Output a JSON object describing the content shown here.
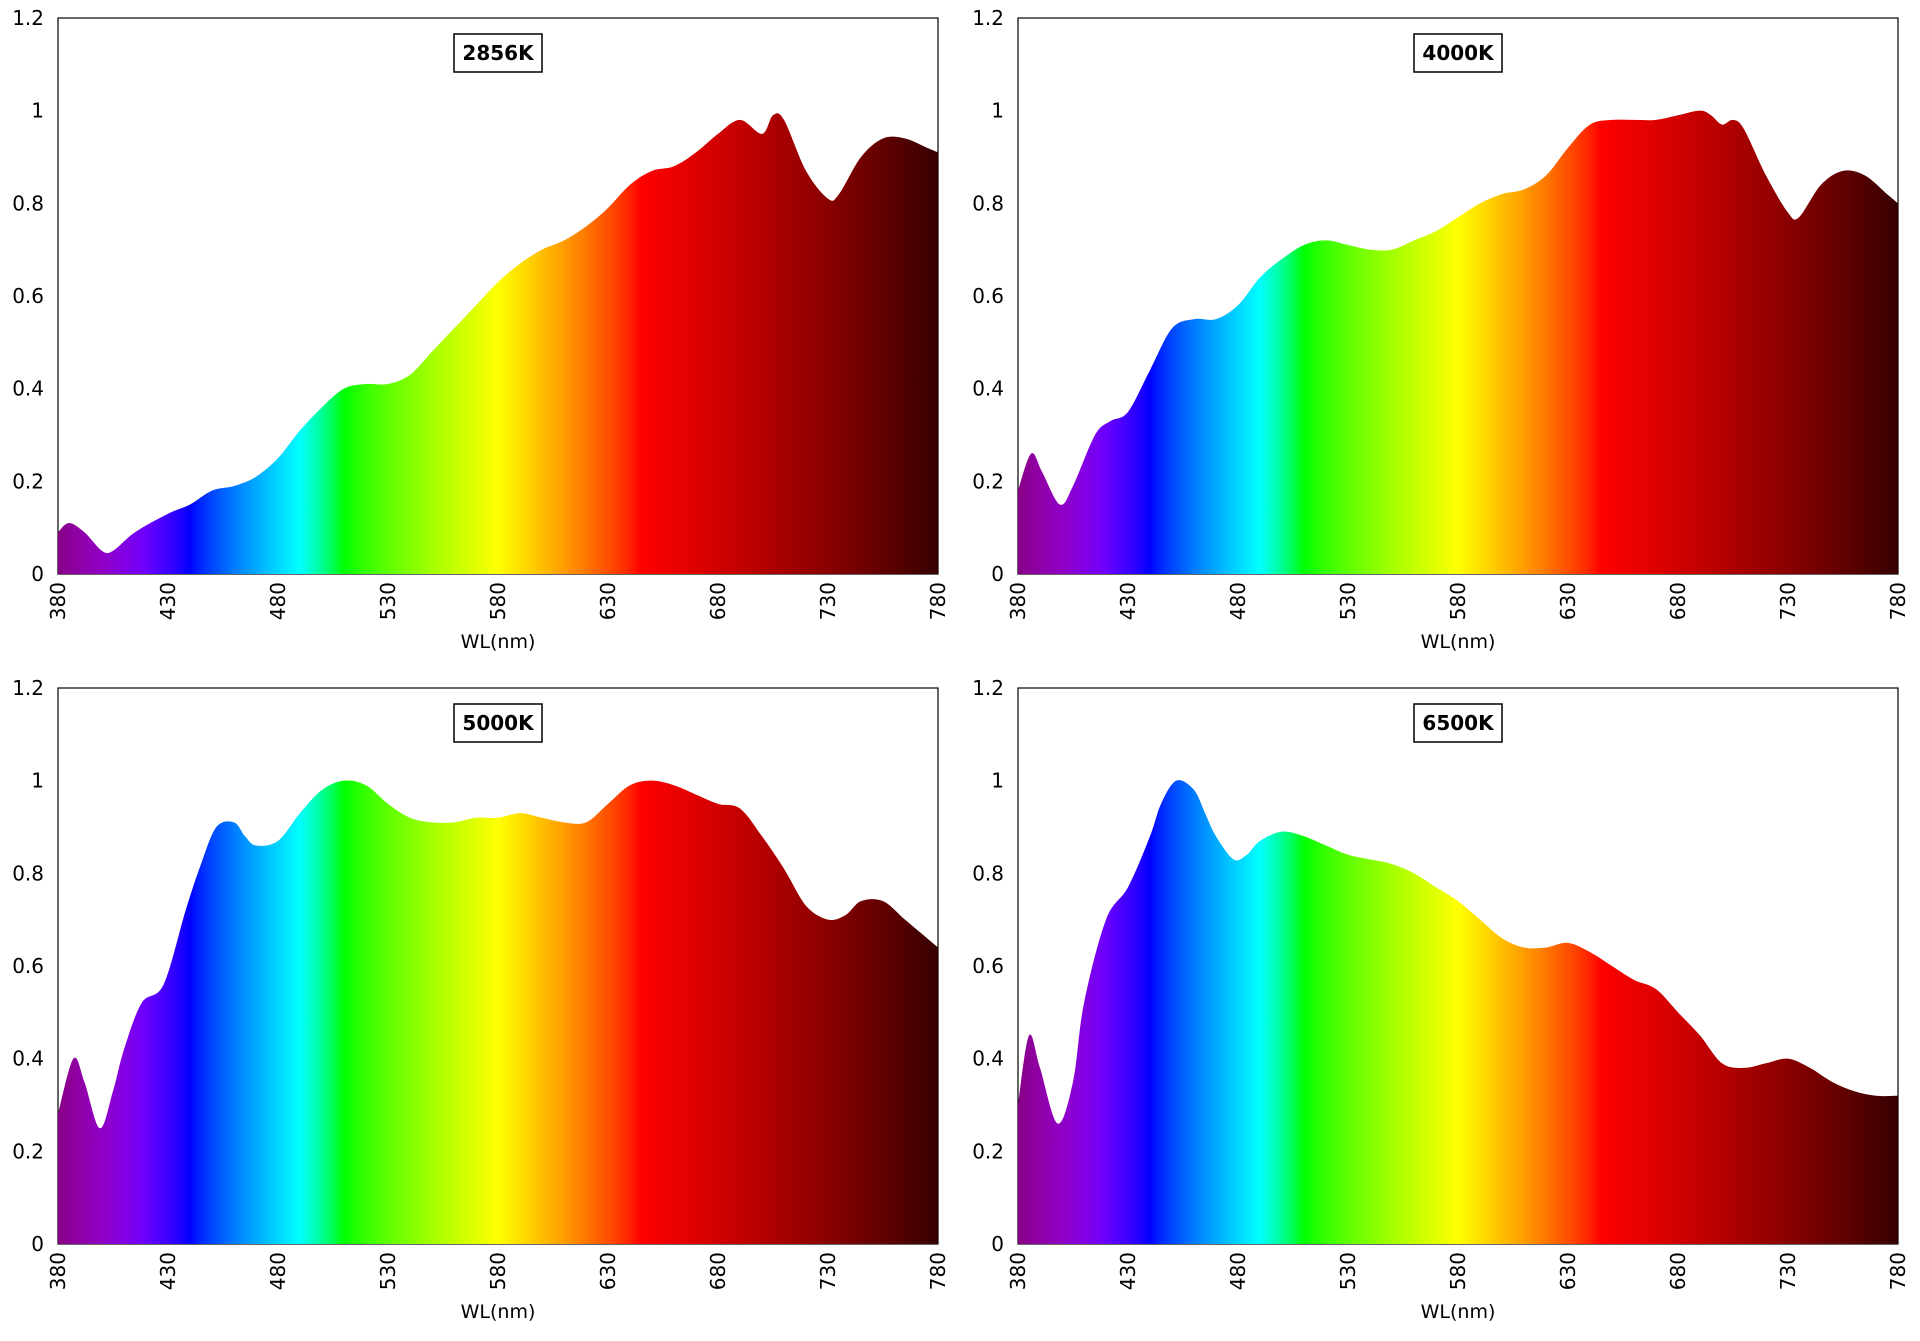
{
  "chart_data": [
    {
      "type": "area",
      "title": "2856K",
      "xlabel": "WL(nm)",
      "ylabel": "",
      "xlim": [
        380,
        780
      ],
      "ylim": [
        0,
        1.2
      ],
      "xticks": [
        "380",
        "430",
        "480",
        "530",
        "580",
        "630",
        "680",
        "730",
        "780"
      ],
      "yticks": [
        "0",
        "0.2",
        "0.4",
        "0.6",
        "0.8",
        "1",
        "1.2"
      ],
      "grid": false,
      "legend": "none",
      "fill": "visible-spectrum gradient",
      "x": [
        380,
        385,
        392,
        400,
        405,
        415,
        430,
        440,
        450,
        460,
        470,
        480,
        490,
        500,
        510,
        520,
        530,
        540,
        550,
        560,
        570,
        580,
        590,
        600,
        610,
        620,
        630,
        640,
        650,
        660,
        670,
        680,
        690,
        700,
        705,
        710,
        720,
        730,
        735,
        745,
        755,
        765,
        775,
        780
      ],
      "values": [
        0.09,
        0.11,
        0.09,
        0.05,
        0.05,
        0.09,
        0.13,
        0.15,
        0.18,
        0.19,
        0.21,
        0.25,
        0.31,
        0.36,
        0.4,
        0.41,
        0.41,
        0.43,
        0.48,
        0.53,
        0.58,
        0.63,
        0.67,
        0.7,
        0.72,
        0.75,
        0.79,
        0.84,
        0.87,
        0.88,
        0.91,
        0.95,
        0.98,
        0.95,
        0.99,
        0.98,
        0.87,
        0.81,
        0.82,
        0.9,
        0.94,
        0.94,
        0.92,
        0.91
      ]
    },
    {
      "type": "area",
      "title": "4000K",
      "xlabel": "WL(nm)",
      "ylabel": "",
      "xlim": [
        380,
        780
      ],
      "ylim": [
        0,
        1.2
      ],
      "xticks": [
        "380",
        "430",
        "480",
        "530",
        "580",
        "630",
        "680",
        "730",
        "780"
      ],
      "yticks": [
        "0",
        "0.2",
        "0.4",
        "0.6",
        "0.8",
        "1",
        "1.2"
      ],
      "grid": false,
      "legend": "none",
      "fill": "visible-spectrum gradient",
      "x": [
        380,
        386,
        391,
        399,
        405,
        415,
        422,
        430,
        440,
        450,
        460,
        470,
        480,
        490,
        500,
        510,
        520,
        530,
        540,
        550,
        560,
        570,
        580,
        590,
        600,
        610,
        620,
        630,
        640,
        650,
        660,
        670,
        680,
        690,
        695,
        700,
        705,
        710,
        720,
        730,
        735,
        745,
        755,
        765,
        775,
        780
      ],
      "values": [
        0.18,
        0.26,
        0.22,
        0.15,
        0.19,
        0.3,
        0.33,
        0.35,
        0.44,
        0.53,
        0.55,
        0.55,
        0.58,
        0.64,
        0.68,
        0.71,
        0.72,
        0.71,
        0.7,
        0.7,
        0.72,
        0.74,
        0.77,
        0.8,
        0.82,
        0.83,
        0.86,
        0.92,
        0.97,
        0.98,
        0.98,
        0.98,
        0.99,
        1.0,
        0.99,
        0.97,
        0.98,
        0.96,
        0.86,
        0.78,
        0.77,
        0.84,
        0.87,
        0.86,
        0.82,
        0.8
      ]
    },
    {
      "type": "area",
      "title": "5000K",
      "xlabel": "WL(nm)",
      "ylabel": "",
      "xlim": [
        380,
        780
      ],
      "ylim": [
        0,
        1.2
      ],
      "xticks": [
        "380",
        "430",
        "480",
        "530",
        "580",
        "630",
        "680",
        "730",
        "780"
      ],
      "yticks": [
        "0",
        "0.2",
        "0.4",
        "0.6",
        "0.8",
        "1",
        "1.2"
      ],
      "grid": false,
      "legend": "none",
      "fill": "visible-spectrum gradient",
      "x": [
        380,
        387,
        392,
        399,
        405,
        410,
        418,
        428,
        438,
        445,
        452,
        460,
        465,
        470,
        480,
        490,
        500,
        510,
        520,
        530,
        540,
        550,
        560,
        570,
        580,
        590,
        600,
        610,
        620,
        630,
        640,
        650,
        660,
        670,
        680,
        690,
        700,
        710,
        720,
        730,
        738,
        745,
        755,
        765,
        775,
        780
      ],
      "values": [
        0.28,
        0.4,
        0.35,
        0.25,
        0.33,
        0.42,
        0.52,
        0.56,
        0.72,
        0.82,
        0.9,
        0.91,
        0.88,
        0.86,
        0.87,
        0.93,
        0.98,
        1.0,
        0.99,
        0.95,
        0.92,
        0.91,
        0.91,
        0.92,
        0.92,
        0.93,
        0.92,
        0.91,
        0.91,
        0.95,
        0.99,
        1.0,
        0.99,
        0.97,
        0.95,
        0.94,
        0.88,
        0.81,
        0.73,
        0.7,
        0.71,
        0.74,
        0.74,
        0.7,
        0.66,
        0.64
      ]
    },
    {
      "type": "area",
      "title": "6500K",
      "xlabel": "WL(nm)",
      "ylabel": "",
      "xlim": [
        380,
        780
      ],
      "ylim": [
        0,
        1.2
      ],
      "xticks": [
        "380",
        "430",
        "480",
        "530",
        "580",
        "630",
        "680",
        "730",
        "780"
      ],
      "yticks": [
        "0",
        "0.2",
        "0.4",
        "0.6",
        "0.8",
        "1",
        "1.2"
      ],
      "grid": false,
      "legend": "none",
      "fill": "visible-spectrum gradient",
      "x": [
        380,
        385,
        390,
        398,
        405,
        410,
        420,
        430,
        440,
        445,
        452,
        460,
        465,
        470,
        478,
        484,
        490,
        500,
        510,
        520,
        530,
        540,
        550,
        560,
        570,
        580,
        590,
        600,
        610,
        620,
        630,
        640,
        650,
        660,
        670,
        680,
        690,
        700,
        710,
        720,
        730,
        740,
        750,
        760,
        770,
        780
      ],
      "values": [
        0.3,
        0.45,
        0.38,
        0.26,
        0.35,
        0.52,
        0.7,
        0.77,
        0.88,
        0.95,
        1.0,
        0.98,
        0.93,
        0.88,
        0.83,
        0.84,
        0.87,
        0.89,
        0.88,
        0.86,
        0.84,
        0.83,
        0.82,
        0.8,
        0.77,
        0.74,
        0.7,
        0.66,
        0.64,
        0.64,
        0.65,
        0.63,
        0.6,
        0.57,
        0.55,
        0.5,
        0.45,
        0.39,
        0.38,
        0.39,
        0.4,
        0.38,
        0.35,
        0.33,
        0.32,
        0.32
      ]
    }
  ]
}
